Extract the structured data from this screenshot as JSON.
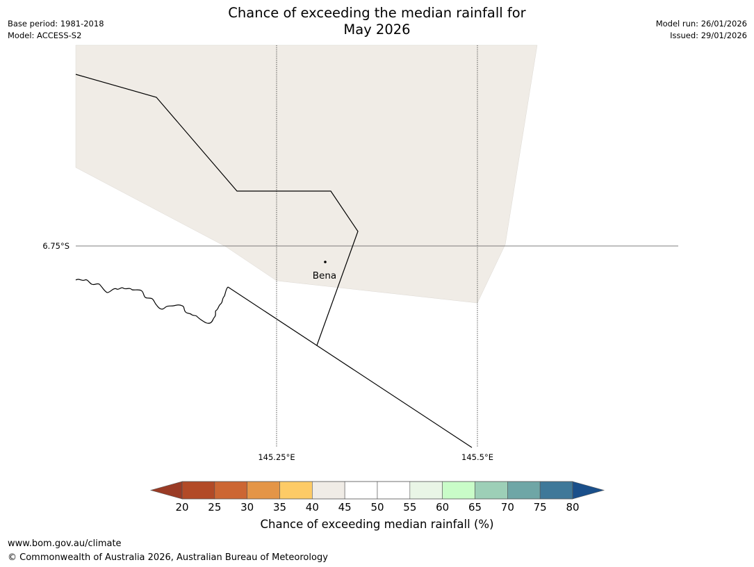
{
  "header": {
    "title_line1": "Chance of exceeding the median rainfall for",
    "title_line2": "May 2026",
    "base_period": "Base period: 1981-2018",
    "model": "Model: ACCESS-S2",
    "model_run": "Model run: 26/01/2026",
    "issued": "Issued: 29/01/2026"
  },
  "map": {
    "lat_label": "6.75°S",
    "lon_labels": [
      "145.25°E",
      "145.5°E"
    ],
    "place": "Bena",
    "land_fill": "#f0ece6",
    "line_color": "#000000"
  },
  "colorbar": {
    "ticks": [
      "20",
      "25",
      "30",
      "35",
      "40",
      "45",
      "50",
      "55",
      "60",
      "65",
      "70",
      "75",
      "80"
    ],
    "below_color": "#9a3b25",
    "above_color": "#1a4f8a",
    "colors": [
      "#b24a27",
      "#cc6633",
      "#e49547",
      "#fdcb66",
      "#f0ece6",
      "#ffffff",
      "#ffffff",
      "#e9f5e6",
      "#c9fcc8",
      "#9dcfb7",
      "#6fa6a6",
      "#3f7899"
    ],
    "title": "Chance of exceeding median rainfall (%)"
  },
  "footer": {
    "url": "www.bom.gov.au/climate",
    "copyright": "© Commonwealth of Australia 2026, Australian Bureau of Meteorology"
  }
}
